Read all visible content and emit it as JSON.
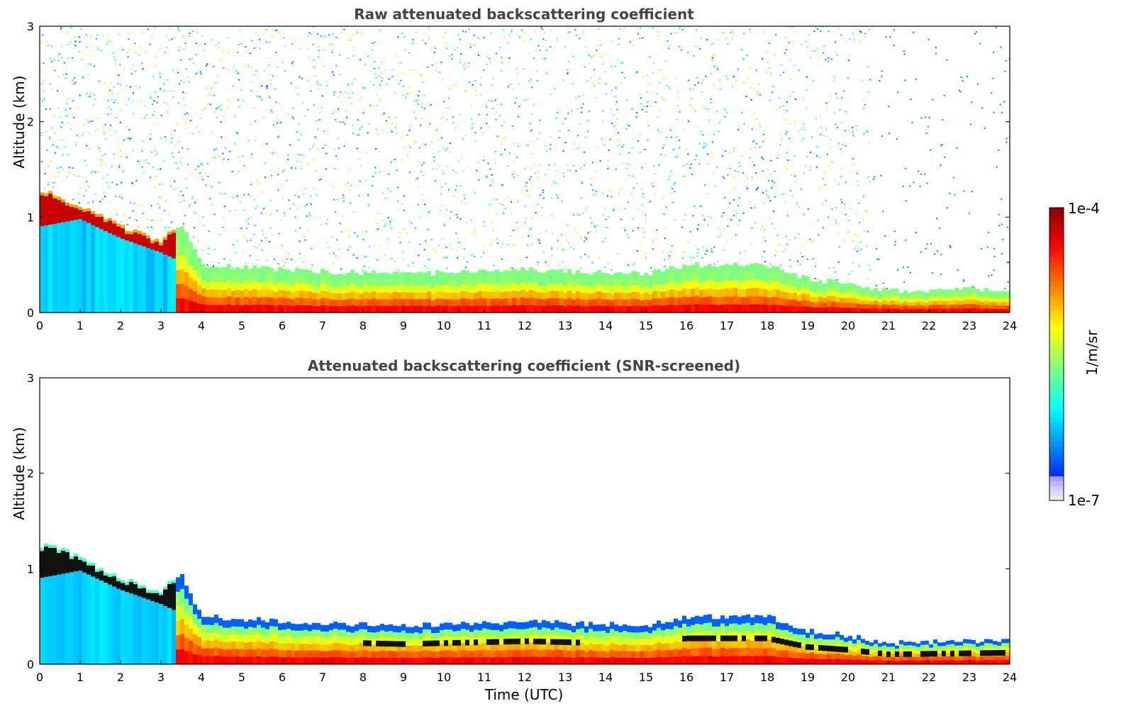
{
  "chart_data": [
    {
      "type": "heatmap",
      "title": "Raw attenuated backscattering coefficient",
      "xlabel": "",
      "ylabel": "Altitude (km)",
      "xlim": [
        0,
        24
      ],
      "ylim": [
        0,
        3
      ],
      "x_ticks": [
        "0",
        "1",
        "2",
        "3",
        "4",
        "5",
        "6",
        "7",
        "8",
        "9",
        "10",
        "11",
        "12",
        "13",
        "14",
        "15",
        "16",
        "17",
        "18",
        "19",
        "20",
        "21",
        "22",
        "23",
        "24"
      ],
      "y_ticks": [
        "0",
        "1",
        "2",
        "3"
      ],
      "layer_top_km": [
        [
          0,
          1.2
        ],
        [
          0.3,
          1.22
        ],
        [
          1,
          1.08
        ],
        [
          2,
          0.88
        ],
        [
          3,
          0.72
        ],
        [
          3.5,
          0.95
        ],
        [
          4,
          0.5
        ],
        [
          6,
          0.45
        ],
        [
          9,
          0.4
        ],
        [
          12,
          0.45
        ],
        [
          15,
          0.4
        ],
        [
          16,
          0.5
        ],
        [
          18,
          0.5
        ],
        [
          19,
          0.35
        ],
        [
          20,
          0.3
        ],
        [
          21,
          0.22
        ],
        [
          24,
          0.25
        ]
      ],
      "layer_bottom_km": [
        [
          0,
          0.9
        ],
        [
          1,
          0.98
        ],
        [
          2,
          0.78
        ],
        [
          3,
          0.63
        ],
        [
          3.4,
          0.55
        ],
        [
          4,
          0.0
        ],
        [
          24,
          0.0
        ]
      ],
      "raw_signal": true
    },
    {
      "type": "heatmap",
      "title": "Attenuated backscattering coefficient (SNR-screened)",
      "xlabel": "Time (UTC)",
      "ylabel": "Altitude (km)",
      "xlim": [
        0,
        24
      ],
      "ylim": [
        0,
        3
      ],
      "x_ticks": [
        "0",
        "1",
        "2",
        "3",
        "4",
        "5",
        "6",
        "7",
        "8",
        "9",
        "10",
        "11",
        "12",
        "13",
        "14",
        "15",
        "16",
        "17",
        "18",
        "19",
        "20",
        "21",
        "22",
        "23",
        "24"
      ],
      "y_ticks": [
        "0",
        "1",
        "2",
        "3"
      ],
      "layer_top_km": [
        [
          0,
          1.2
        ],
        [
          0.3,
          1.22
        ],
        [
          1,
          1.08
        ],
        [
          2,
          0.88
        ],
        [
          3,
          0.72
        ],
        [
          3.5,
          0.95
        ],
        [
          4,
          0.5
        ],
        [
          6,
          0.45
        ],
        [
          9,
          0.4
        ],
        [
          12,
          0.45
        ],
        [
          15,
          0.4
        ],
        [
          16,
          0.5
        ],
        [
          18,
          0.5
        ],
        [
          19,
          0.35
        ],
        [
          20,
          0.3
        ],
        [
          21,
          0.22
        ],
        [
          24,
          0.25
        ]
      ],
      "layer_bottom_km": [
        [
          0,
          0.9
        ],
        [
          1,
          0.98
        ],
        [
          2,
          0.78
        ],
        [
          3,
          0.63
        ],
        [
          3.4,
          0.55
        ],
        [
          4,
          0.0
        ],
        [
          24,
          0.0
        ]
      ],
      "raw_signal": false
    }
  ],
  "colorbar": {
    "max_label": "1e-4",
    "min_label": "1e-7",
    "units": "1/m/sr",
    "colormap": "jet"
  }
}
